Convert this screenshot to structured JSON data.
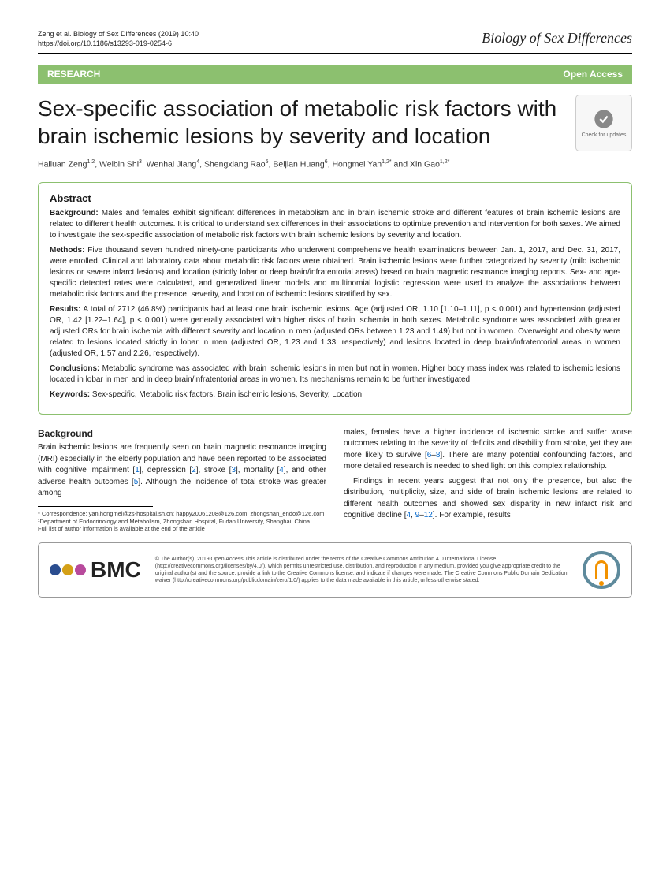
{
  "header": {
    "citation_line1": "Zeng et al. Biology of Sex Differences        (2019) 10:40",
    "citation_line2": "https://doi.org/10.1186/s13293-019-0254-6",
    "journal": "Biology of Sex Differences"
  },
  "badge": {
    "left": "RESEARCH",
    "right": "Open Access"
  },
  "title": "Sex-specific association of metabolic risk factors with brain ischemic lesions by severity and location",
  "check_updates_label": "Check for updates",
  "authors_html": "Hailuan Zeng<sup>1,2</sup>, Weibin Shi<sup>3</sup>, Wenhai Jiang<sup>4</sup>, Shengxiang Rao<sup>5</sup>, Beijian Huang<sup>6</sup>, Hongmei Yan<sup>1,2*</sup> and Xin Gao<sup>1,2*</sup>",
  "abstract": {
    "heading": "Abstract",
    "background_label": "Background:",
    "background": "Males and females exhibit significant differences in metabolism and in brain ischemic stroke and different features of brain ischemic lesions are related to different health outcomes. It is critical to understand sex differences in their associations to optimize prevention and intervention for both sexes. We aimed to investigate the sex-specific association of metabolic risk factors with brain ischemic lesions by severity and location.",
    "methods_label": "Methods:",
    "methods": "Five thousand seven hundred ninety-one participants who underwent comprehensive health examinations between Jan. 1, 2017, and Dec. 31, 2017, were enrolled. Clinical and laboratory data about metabolic risk factors were obtained. Brain ischemic lesions were further categorized by severity (mild ischemic lesions or severe infarct lesions) and location (strictly lobar or deep brain/infratentorial areas) based on brain magnetic resonance imaging reports. Sex- and age-specific detected rates were calculated, and generalized linear models and multinomial logistic regression were used to analyze the associations between metabolic risk factors and the presence, severity, and location of ischemic lesions stratified by sex.",
    "results_label": "Results:",
    "results": "A total of 2712 (46.8%) participants had at least one brain ischemic lesions. Age (adjusted OR, 1.10 [1.10–1.11], p < 0.001) and hypertension (adjusted OR, 1.42 [1.22–1.64], p < 0.001) were generally associated with higher risks of brain ischemia in both sexes. Metabolic syndrome was associated with greater adjusted ORs for brain ischemia with different severity and location in men (adjusted ORs between 1.23 and 1.49) but not in women. Overweight and obesity were related to lesions located strictly in lobar in men (adjusted OR, 1.23 and 1.33, respectively) and lesions located in deep brain/infratentorial areas in women (adjusted OR, 1.57 and 2.26, respectively).",
    "conclusions_label": "Conclusions:",
    "conclusions": "Metabolic syndrome was associated with brain ischemic lesions in men but not in women. Higher body mass index was related to ischemic lesions located in lobar in men and in deep brain/infratentorial areas in women. Its mechanisms remain to be further investigated.",
    "keywords_label": "Keywords:",
    "keywords": "Sex-specific, Metabolic risk factors, Brain ischemic lesions, Severity, Location"
  },
  "body": {
    "heading": "Background",
    "col1_p1a": "Brain ischemic lesions are frequently seen on brain magnetic resonance imaging (MRI) especially in the elderly population and have been reported to be associated with cognitive impairment [",
    "col1_r1": "1",
    "col1_p1b": "], depression [",
    "col1_r2": "2",
    "col1_p1c": "], stroke [",
    "col1_r3": "3",
    "col1_p1d": "], mortality [",
    "col1_r4": "4",
    "col1_p1e": "], and other adverse health outcomes [",
    "col1_r5": "5",
    "col1_p1f": "]. Although the incidence of total stroke was greater among",
    "col2_p1a": "males, females have a higher incidence of ischemic stroke and suffer worse outcomes relating to the severity of deficits and disability from stroke, yet they are more likely to survive [",
    "col2_r1": "6",
    "col2_r1b": "8",
    "col2_p1b": "]. There are many potential confounding factors, and more detailed research is needed to shed light on this complex relationship.",
    "col2_p2a": "Findings in recent years suggest that not only the presence, but also the distribution, multiplicity, size, and side of brain ischemic lesions are related to different health outcomes and showed sex disparity in new infarct risk and cognitive decline [",
    "col2_r2": "4",
    "col2_r3": "9",
    "col2_r4": "12",
    "col2_p2b": "]. For example, results"
  },
  "footnotes": {
    "l1": "* Correspondence: yan.hongmei@zs-hospital.sh.cn; happy20061208@126.com; zhongshan_endo@126.com",
    "l2": "¹Department of Endocrinology and Metabolism, Zhongshan Hospital, Fudan University, Shanghai, China",
    "l3": "Full list of author information is available at the end of the article"
  },
  "footer": {
    "bmc_colors": [
      "#2a4d8f",
      "#d4a017",
      "#b84a9c"
    ],
    "bmc_text": "BMC",
    "license": "© The Author(s). 2019 Open Access This article is distributed under the terms of the Creative Commons Attribution 4.0 International License (http://creativecommons.org/licenses/by/4.0/), which permits unrestricted use, distribution, and reproduction in any medium, provided you give appropriate credit to the original author(s) and the source, provide a link to the Creative Commons license, and indicate if changes were made. The Creative Commons Public Domain Dedication waiver (http://creativecommons.org/publicdomain/zero/1.0/) applies to the data made available in this article, unless otherwise stated."
  }
}
